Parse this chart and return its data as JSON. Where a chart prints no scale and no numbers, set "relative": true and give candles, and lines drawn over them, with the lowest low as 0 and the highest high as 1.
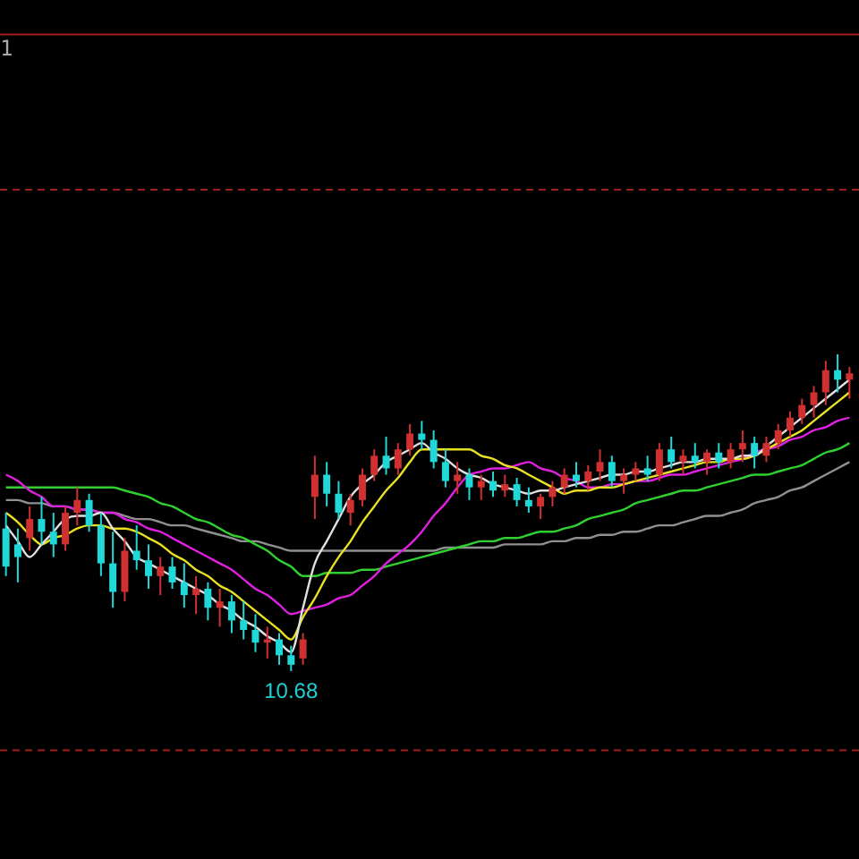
{
  "chart_data": {
    "type": "candlestick",
    "relative": true,
    "categories": [
      null,
      null,
      null,
      null,
      null,
      null,
      null,
      null,
      null,
      null,
      null,
      null,
      null,
      null,
      null,
      null,
      null,
      null,
      null,
      null,
      null,
      null,
      null,
      null,
      null,
      null,
      null,
      null,
      null,
      null,
      null,
      null,
      null,
      null,
      null,
      null,
      null,
      null,
      null,
      null,
      null,
      null,
      null,
      null,
      null,
      null,
      null,
      null,
      null,
      null,
      null,
      null,
      null,
      null,
      null,
      null,
      null,
      null,
      null,
      null,
      null,
      null,
      null,
      null,
      null,
      null,
      null,
      null,
      null,
      null,
      null,
      null
    ],
    "ohlc": [
      [
        0.45,
        0.5,
        0.3,
        0.33
      ],
      [
        0.4,
        0.45,
        0.28,
        0.36
      ],
      [
        0.42,
        0.52,
        0.38,
        0.48
      ],
      [
        0.48,
        0.55,
        0.4,
        0.44
      ],
      [
        0.44,
        0.5,
        0.36,
        0.4
      ],
      [
        0.4,
        0.52,
        0.38,
        0.5
      ],
      [
        0.5,
        0.58,
        0.46,
        0.54
      ],
      [
        0.54,
        0.56,
        0.44,
        0.46
      ],
      [
        0.46,
        0.5,
        0.3,
        0.34
      ],
      [
        0.34,
        0.44,
        0.2,
        0.25
      ],
      [
        0.25,
        0.42,
        0.22,
        0.38
      ],
      [
        0.38,
        0.46,
        0.32,
        0.35
      ],
      [
        0.35,
        0.4,
        0.26,
        0.3
      ],
      [
        0.3,
        0.36,
        0.24,
        0.33
      ],
      [
        0.33,
        0.36,
        0.26,
        0.28
      ],
      [
        0.28,
        0.34,
        0.2,
        0.24
      ],
      [
        0.24,
        0.3,
        0.18,
        0.26
      ],
      [
        0.26,
        0.28,
        0.16,
        0.2
      ],
      [
        0.2,
        0.26,
        0.14,
        0.22
      ],
      [
        0.22,
        0.24,
        0.12,
        0.16
      ],
      [
        0.16,
        0.22,
        0.1,
        0.13
      ],
      [
        0.13,
        0.18,
        0.06,
        0.09
      ],
      [
        0.09,
        0.14,
        0.04,
        0.1
      ],
      [
        0.1,
        0.12,
        0.02,
        0.05
      ],
      [
        0.05,
        0.08,
        0,
        0.02
      ],
      [
        0.04,
        0.12,
        0.02,
        0.1
      ],
      [
        0.55,
        0.68,
        0.48,
        0.62
      ],
      [
        0.62,
        0.66,
        0.52,
        0.56
      ],
      [
        0.56,
        0.6,
        0.48,
        0.5
      ],
      [
        0.5,
        0.56,
        0.46,
        0.54
      ],
      [
        0.54,
        0.64,
        0.52,
        0.62
      ],
      [
        0.62,
        0.7,
        0.6,
        0.68
      ],
      [
        0.68,
        0.74,
        0.62,
        0.64
      ],
      [
        0.64,
        0.72,
        0.62,
        0.7
      ],
      [
        0.7,
        0.78,
        0.68,
        0.75
      ],
      [
        0.75,
        0.79,
        0.7,
        0.73
      ],
      [
        0.73,
        0.76,
        0.64,
        0.66
      ],
      [
        0.66,
        0.7,
        0.58,
        0.6
      ],
      [
        0.6,
        0.66,
        0.56,
        0.62
      ],
      [
        0.62,
        0.64,
        0.54,
        0.58
      ],
      [
        0.58,
        0.62,
        0.54,
        0.6
      ],
      [
        0.6,
        0.63,
        0.55,
        0.57
      ],
      [
        0.57,
        0.62,
        0.55,
        0.59
      ],
      [
        0.59,
        0.61,
        0.52,
        0.54
      ],
      [
        0.54,
        0.58,
        0.5,
        0.52
      ],
      [
        0.52,
        0.56,
        0.48,
        0.55
      ],
      [
        0.55,
        0.6,
        0.52,
        0.58
      ],
      [
        0.58,
        0.64,
        0.56,
        0.62
      ],
      [
        0.62,
        0.66,
        0.58,
        0.6
      ],
      [
        0.6,
        0.65,
        0.57,
        0.63
      ],
      [
        0.63,
        0.7,
        0.6,
        0.66
      ],
      [
        0.66,
        0.68,
        0.58,
        0.6
      ],
      [
        0.6,
        0.64,
        0.56,
        0.62
      ],
      [
        0.62,
        0.66,
        0.6,
        0.64
      ],
      [
        0.64,
        0.68,
        0.6,
        0.62
      ],
      [
        0.62,
        0.72,
        0.6,
        0.7
      ],
      [
        0.7,
        0.74,
        0.64,
        0.66
      ],
      [
        0.66,
        0.7,
        0.62,
        0.68
      ],
      [
        0.68,
        0.72,
        0.64,
        0.66
      ],
      [
        0.66,
        0.7,
        0.62,
        0.69
      ],
      [
        0.69,
        0.72,
        0.64,
        0.66
      ],
      [
        0.66,
        0.72,
        0.64,
        0.7
      ],
      [
        0.7,
        0.76,
        0.66,
        0.72
      ],
      [
        0.72,
        0.74,
        0.64,
        0.68
      ],
      [
        0.68,
        0.74,
        0.66,
        0.72
      ],
      [
        0.72,
        0.78,
        0.7,
        0.76
      ],
      [
        0.76,
        0.82,
        0.74,
        0.8
      ],
      [
        0.8,
        0.86,
        0.78,
        0.84
      ],
      [
        0.84,
        0.9,
        0.8,
        0.88
      ],
      [
        0.88,
        0.98,
        0.84,
        0.95
      ],
      [
        0.95,
        1,
        0.88,
        0.92
      ],
      [
        0.92,
        0.96,
        0.86,
        0.94
      ]
    ],
    "colors": [
      "#20d8d8",
      "#20d8d8",
      "#d03030",
      "#20d8d8",
      "#20d8d8",
      "#d03030",
      "#d03030",
      "#20d8d8",
      "#20d8d8",
      "#20d8d8",
      "#d03030",
      "#20d8d8",
      "#20d8d8",
      "#d03030",
      "#20d8d8",
      "#20d8d8",
      "#d03030",
      "#20d8d8",
      "#d03030",
      "#20d8d8",
      "#20d8d8",
      "#20d8d8",
      "#d03030",
      "#20d8d8",
      "#20d8d8",
      "#d03030",
      "#d03030",
      "#20d8d8",
      "#20d8d8",
      "#d03030",
      "#d03030",
      "#d03030",
      "#20d8d8",
      "#d03030",
      "#d03030",
      "#20d8d8",
      "#20d8d8",
      "#20d8d8",
      "#d03030",
      "#20d8d8",
      "#d03030",
      "#20d8d8",
      "#d03030",
      "#20d8d8",
      "#20d8d8",
      "#d03030",
      "#d03030",
      "#d03030",
      "#20d8d8",
      "#d03030",
      "#d03030",
      "#20d8d8",
      "#d03030",
      "#d03030",
      "#20d8d8",
      "#d03030",
      "#20d8d8",
      "#d03030",
      "#20d8d8",
      "#d03030",
      "#20d8d8",
      "#d03030",
      "#d03030",
      "#20d8d8",
      "#d03030",
      "#d03030",
      "#d03030",
      "#d03030",
      "#d03030",
      "#d03030",
      "#20d8d8",
      "#d03030"
    ],
    "series": [
      {
        "type": "line",
        "color": "#909090",
        "values": [
          0.54,
          0.54,
          0.53,
          0.53,
          0.52,
          0.52,
          0.51,
          0.51,
          0.5,
          0.5,
          0.49,
          0.48,
          0.48,
          0.47,
          0.46,
          0.46,
          0.45,
          0.44,
          0.43,
          0.42,
          0.41,
          0.41,
          0.4,
          0.39,
          0.38,
          0.38,
          0.38,
          0.38,
          0.38,
          0.38,
          0.38,
          0.38,
          0.38,
          0.38,
          0.38,
          0.38,
          0.38,
          0.39,
          0.39,
          0.39,
          0.39,
          0.39,
          0.4,
          0.4,
          0.4,
          0.4,
          0.41,
          0.41,
          0.42,
          0.42,
          0.43,
          0.43,
          0.44,
          0.44,
          0.45,
          0.46,
          0.46,
          0.47,
          0.48,
          0.49,
          0.49,
          0.5,
          0.51,
          0.53,
          0.54,
          0.55,
          0.57,
          0.58,
          0.6,
          0.62,
          0.64,
          0.66
        ]
      },
      {
        "type": "line",
        "color": "#30d030",
        "values": [
          0.58,
          0.58,
          0.58,
          0.58,
          0.58,
          0.58,
          0.58,
          0.58,
          0.58,
          0.58,
          0.57,
          0.56,
          0.55,
          0.53,
          0.52,
          0.5,
          0.48,
          0.47,
          0.45,
          0.43,
          0.42,
          0.4,
          0.38,
          0.35,
          0.33,
          0.3,
          0.3,
          0.31,
          0.31,
          0.31,
          0.32,
          0.32,
          0.33,
          0.34,
          0.35,
          0.36,
          0.37,
          0.38,
          0.39,
          0.4,
          0.41,
          0.41,
          0.42,
          0.42,
          0.43,
          0.44,
          0.44,
          0.45,
          0.46,
          0.48,
          0.49,
          0.5,
          0.51,
          0.53,
          0.54,
          0.55,
          0.56,
          0.57,
          0.57,
          0.58,
          0.59,
          0.6,
          0.61,
          0.62,
          0.62,
          0.63,
          0.64,
          0.65,
          0.67,
          0.69,
          0.7,
          0.72
        ]
      },
      {
        "type": "line",
        "color": "#e020e0",
        "values": [
          0.62,
          0.6,
          0.57,
          0.55,
          0.52,
          0.52,
          0.51,
          0.51,
          0.5,
          0.5,
          0.48,
          0.47,
          0.45,
          0.44,
          0.42,
          0.4,
          0.38,
          0.36,
          0.34,
          0.32,
          0.29,
          0.26,
          0.24,
          0.21,
          0.18,
          0.19,
          0.2,
          0.21,
          0.23,
          0.24,
          0.27,
          0.3,
          0.34,
          0.37,
          0.4,
          0.44,
          0.49,
          0.53,
          0.58,
          0.62,
          0.63,
          0.64,
          0.64,
          0.65,
          0.66,
          0.64,
          0.63,
          0.61,
          0.6,
          0.58,
          0.58,
          0.59,
          0.59,
          0.6,
          0.6,
          0.61,
          0.62,
          0.62,
          0.63,
          0.64,
          0.65,
          0.66,
          0.67,
          0.69,
          0.7,
          0.71,
          0.73,
          0.74,
          0.76,
          0.77,
          0.79,
          0.8
        ]
      },
      {
        "type": "line",
        "color": "#e8e020",
        "values": [
          0.5,
          0.47,
          0.43,
          0.4,
          0.42,
          0.43,
          0.45,
          0.46,
          0.46,
          0.45,
          0.45,
          0.44,
          0.42,
          0.4,
          0.37,
          0.35,
          0.32,
          0.3,
          0.27,
          0.25,
          0.22,
          0.19,
          0.16,
          0.13,
          0.1,
          0.17,
          0.23,
          0.3,
          0.36,
          0.41,
          0.47,
          0.52,
          0.57,
          0.61,
          0.66,
          0.7,
          0.7,
          0.7,
          0.7,
          0.7,
          0.68,
          0.67,
          0.65,
          0.64,
          0.62,
          0.6,
          0.58,
          0.56,
          0.57,
          0.57,
          0.58,
          0.58,
          0.59,
          0.6,
          0.61,
          0.62,
          0.63,
          0.64,
          0.65,
          0.66,
          0.66,
          0.67,
          0.67,
          0.68,
          0.7,
          0.72,
          0.74,
          0.76,
          0.79,
          0.82,
          0.85,
          0.88
        ]
      },
      {
        "type": "line",
        "color": "#e0e0e0",
        "values": [
          0.46,
          0.41,
          0.36,
          0.4,
          0.44,
          0.48,
          0.49,
          0.49,
          0.5,
          0.45,
          0.41,
          0.36,
          0.34,
          0.32,
          0.3,
          0.28,
          0.26,
          0.24,
          0.21,
          0.19,
          0.16,
          0.14,
          0.11,
          0.09,
          0.06,
          0.2,
          0.34,
          0.41,
          0.48,
          0.55,
          0.59,
          0.62,
          0.66,
          0.68,
          0.7,
          0.72,
          0.69,
          0.67,
          0.64,
          0.62,
          0.61,
          0.59,
          0.58,
          0.57,
          0.56,
          0.57,
          0.57,
          0.58,
          0.59,
          0.6,
          0.61,
          0.62,
          0.62,
          0.63,
          0.63,
          0.64,
          0.65,
          0.66,
          0.66,
          0.67,
          0.67,
          0.67,
          0.68,
          0.68,
          0.71,
          0.74,
          0.77,
          0.8,
          0.83,
          0.86,
          0.89,
          0.92
        ]
      }
    ],
    "ref_lines": [
      {
        "axis": "y",
        "value": 2.01,
        "color": "#a02020",
        "line_style": "solid"
      },
      {
        "axis": "y",
        "value": 1.52,
        "color": "#a02020",
        "line_style": "dashed"
      },
      {
        "axis": "y",
        "value": -0.25,
        "color": "#a02020",
        "line_style": "dashed"
      }
    ],
    "annotations": [
      "1",
      {
        "text": "10.68",
        "y": 0
      }
    ]
  }
}
